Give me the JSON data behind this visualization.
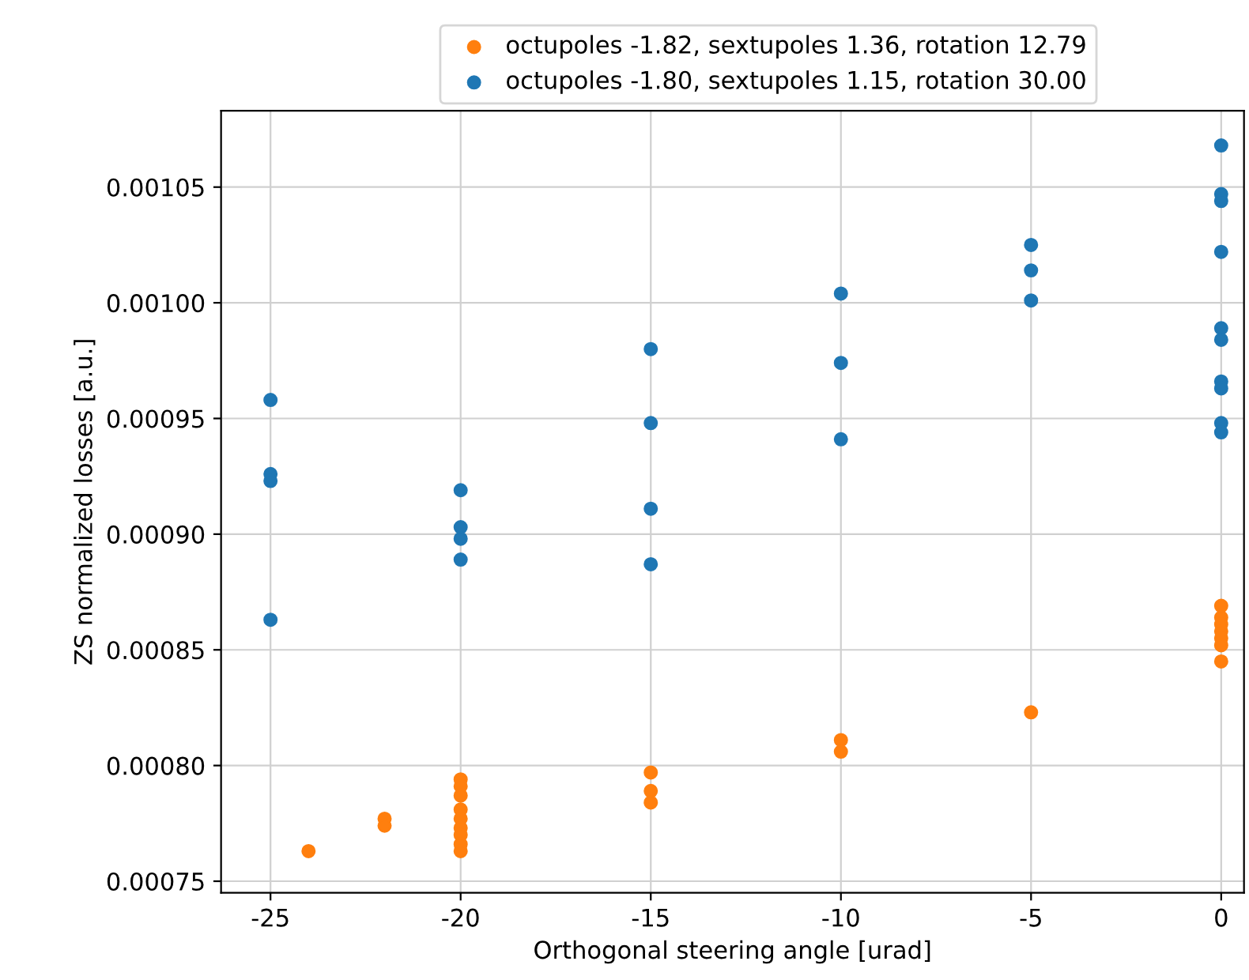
{
  "chart_data": {
    "type": "scatter",
    "xlabel": "Orthogonal steering angle [urad]",
    "ylabel": "ZS normalized losses [a.u.]",
    "xlim": [
      -26.3,
      0.6
    ],
    "ylim": [
      0.000745,
      0.001083
    ],
    "xticks": [
      -25,
      -20,
      -15,
      -10,
      -5,
      0
    ],
    "yticks": [
      {
        "value": 0.00075,
        "label": "0.00075"
      },
      {
        "value": 0.0008,
        "label": "0.00080"
      },
      {
        "value": 0.00085,
        "label": "0.00085"
      },
      {
        "value": 0.0009,
        "label": "0.00090"
      },
      {
        "value": 0.00095,
        "label": "0.00095"
      },
      {
        "value": 0.001,
        "label": "0.00100"
      },
      {
        "value": 0.00105,
        "label": "0.00105"
      }
    ],
    "grid": true,
    "legend": "top",
    "marker": "circle",
    "series": [
      {
        "name": "octupoles -1.82, sextupoles 1.36, rotation 12.79",
        "color": "#ff7f0e",
        "x": [
          -24,
          -22,
          -22,
          -20,
          -20,
          -20,
          -20,
          -20,
          -20,
          -20,
          -20,
          -20,
          -15,
          -15,
          -15,
          -10,
          -10,
          -5,
          0,
          0,
          0,
          0,
          0,
          0,
          0
        ],
        "values": [
          0.000763,
          0.000777,
          0.000774,
          0.000794,
          0.000791,
          0.000787,
          0.000781,
          0.000777,
          0.000773,
          0.00077,
          0.000766,
          0.000763,
          0.000797,
          0.000789,
          0.000784,
          0.000811,
          0.000806,
          0.000823,
          0.000869,
          0.000864,
          0.000861,
          0.000858,
          0.000855,
          0.000852,
          0.000845
        ]
      },
      {
        "name": "octupoles -1.80, sextupoles 1.15, rotation 30.00",
        "color": "#1f77b4",
        "x": [
          -25,
          -25,
          -25,
          -25,
          -20,
          -20,
          -20,
          -20,
          -15,
          -15,
          -15,
          -15,
          -10,
          -10,
          -10,
          -5,
          -5,
          -5,
          0,
          0,
          0,
          0,
          0,
          0,
          0,
          0,
          0,
          0
        ],
        "values": [
          0.000958,
          0.000926,
          0.000923,
          0.000863,
          0.000919,
          0.000903,
          0.000898,
          0.000889,
          0.00098,
          0.000948,
          0.000911,
          0.000887,
          0.001004,
          0.000974,
          0.000941,
          0.001025,
          0.001014,
          0.001001,
          0.001068,
          0.001047,
          0.001044,
          0.001022,
          0.000989,
          0.000984,
          0.000966,
          0.000963,
          0.000948,
          0.000944
        ]
      }
    ]
  }
}
